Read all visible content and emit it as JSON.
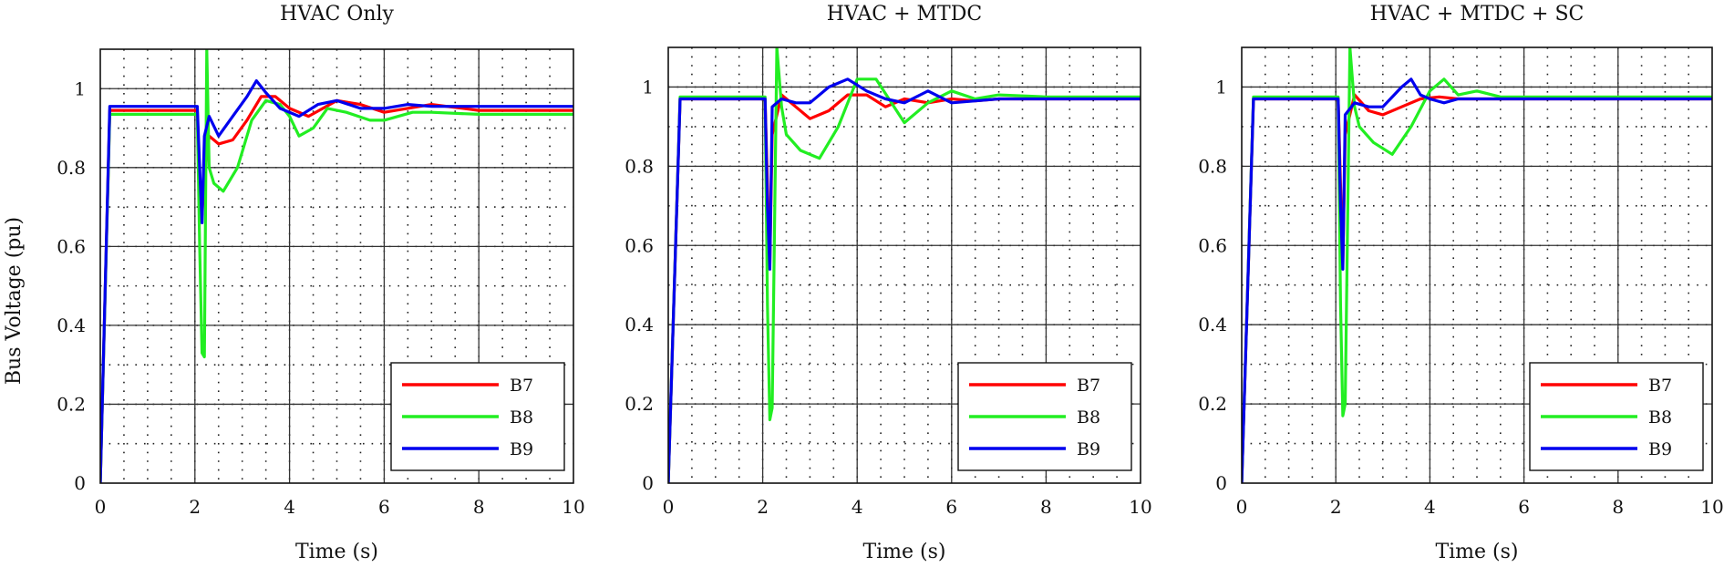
{
  "figure": {
    "ylabel": "Bus Voltage (pu)"
  },
  "colors": {
    "B7": "#ff0000",
    "B8": "#22ee22",
    "B9": "#0000ee"
  },
  "chart_data": [
    {
      "type": "line",
      "title": "HVAC Only",
      "xlabel": "Time (s)",
      "ylabel": "Bus Voltage (pu)",
      "xlim": [
        0,
        10
      ],
      "ylim": [
        0,
        1.1
      ],
      "xticks": [
        "0",
        "2",
        "4",
        "6",
        "8",
        "10"
      ],
      "yticks": [
        "0",
        "0.2",
        "0.4",
        "0.6",
        "0.8",
        "1"
      ],
      "grid": true,
      "legend_position": "bottom-right",
      "series": [
        {
          "name": "B7",
          "x": [
            0,
            0.2,
            2.0,
            2.05,
            2.1,
            2.15,
            2.2,
            2.3,
            2.5,
            2.8,
            3.1,
            3.4,
            3.7,
            4.0,
            4.4,
            5.0,
            5.5,
            6.0,
            7.0,
            8.0,
            9.0,
            10.0
          ],
          "y": [
            0,
            0.945,
            0.945,
            0.945,
            0.75,
            0.68,
            0.78,
            0.88,
            0.86,
            0.87,
            0.92,
            0.98,
            0.98,
            0.95,
            0.93,
            0.97,
            0.96,
            0.94,
            0.96,
            0.945,
            0.945,
            0.945
          ]
        },
        {
          "name": "B8",
          "x": [
            0,
            0.2,
            2.0,
            2.05,
            2.1,
            2.15,
            2.2,
            2.25,
            2.3,
            2.4,
            2.6,
            2.9,
            3.2,
            3.5,
            3.8,
            4.0,
            4.2,
            4.5,
            4.8,
            5.2,
            5.7,
            6.0,
            6.6,
            7.0,
            8.0,
            9.0,
            10.0
          ],
          "y": [
            0,
            0.935,
            0.935,
            0.935,
            0.6,
            0.33,
            0.32,
            1.1,
            0.8,
            0.76,
            0.74,
            0.8,
            0.92,
            0.97,
            0.96,
            0.93,
            0.88,
            0.9,
            0.95,
            0.94,
            0.92,
            0.92,
            0.94,
            0.94,
            0.935,
            0.935,
            0.935
          ]
        },
        {
          "name": "B9",
          "x": [
            0,
            0.2,
            2.0,
            2.05,
            2.1,
            2.15,
            2.2,
            2.3,
            2.5,
            2.8,
            3.1,
            3.3,
            3.5,
            3.8,
            4.2,
            4.6,
            5.0,
            5.5,
            6.0,
            6.5,
            7.0,
            8.0,
            9.0,
            10.0
          ],
          "y": [
            0,
            0.955,
            0.955,
            0.955,
            0.8,
            0.66,
            0.88,
            0.93,
            0.88,
            0.93,
            0.98,
            1.02,
            0.99,
            0.95,
            0.93,
            0.96,
            0.97,
            0.95,
            0.95,
            0.96,
            0.955,
            0.955,
            0.955,
            0.955
          ]
        }
      ]
    },
    {
      "type": "line",
      "title": "HVAC + MTDC",
      "xlabel": "Time (s)",
      "ylabel": "",
      "xlim": [
        0,
        10
      ],
      "ylim": [
        0,
        1.1
      ],
      "xticks": [
        "0",
        "2",
        "4",
        "6",
        "8",
        "10"
      ],
      "yticks": [
        "0",
        "0.2",
        "0.4",
        "0.6",
        "0.8",
        "1"
      ],
      "grid": true,
      "legend_position": "bottom-right",
      "series": [
        {
          "name": "B7",
          "x": [
            0,
            0.25,
            2.0,
            2.05,
            2.1,
            2.15,
            2.2,
            2.4,
            2.7,
            3.0,
            3.4,
            3.8,
            4.2,
            4.6,
            5.0,
            5.5,
            6.0,
            6.5,
            7.0,
            8.0,
            9.0,
            10.0
          ],
          "y": [
            0,
            0.97,
            0.97,
            0.97,
            0.75,
            0.55,
            0.88,
            0.98,
            0.95,
            0.92,
            0.94,
            0.98,
            0.98,
            0.95,
            0.97,
            0.96,
            0.97,
            0.965,
            0.97,
            0.97,
            0.97,
            0.97
          ]
        },
        {
          "name": "B8",
          "x": [
            0,
            0.25,
            2.0,
            2.05,
            2.1,
            2.15,
            2.2,
            2.3,
            2.4,
            2.5,
            2.8,
            3.2,
            3.6,
            4.0,
            4.4,
            5.0,
            5.5,
            6.0,
            6.5,
            7.0,
            8.0,
            9.0,
            10.0
          ],
          "y": [
            0,
            0.975,
            0.975,
            0.975,
            0.45,
            0.16,
            0.19,
            1.1,
            0.95,
            0.88,
            0.84,
            0.82,
            0.9,
            1.02,
            1.02,
            0.91,
            0.96,
            0.99,
            0.97,
            0.98,
            0.975,
            0.975,
            0.975
          ]
        },
        {
          "name": "B9",
          "x": [
            0,
            0.25,
            2.0,
            2.05,
            2.1,
            2.15,
            2.2,
            2.4,
            2.7,
            3.0,
            3.4,
            3.8,
            4.2,
            4.6,
            5.0,
            5.5,
            6.0,
            7.0,
            8.0,
            9.0,
            10.0
          ],
          "y": [
            0,
            0.97,
            0.97,
            0.97,
            0.7,
            0.54,
            0.95,
            0.97,
            0.96,
            0.96,
            1.0,
            1.02,
            0.99,
            0.97,
            0.96,
            0.99,
            0.96,
            0.97,
            0.97,
            0.97,
            0.97
          ]
        }
      ]
    },
    {
      "type": "line",
      "title": "HVAC + MTDC + SC",
      "xlabel": "Time (s)",
      "ylabel": "",
      "xlim": [
        0,
        10
      ],
      "ylim": [
        0,
        1.1
      ],
      "xticks": [
        "0",
        "2",
        "4",
        "6",
        "8",
        "10"
      ],
      "yticks": [
        "0",
        "0.2",
        "0.4",
        "0.6",
        "0.8",
        "1"
      ],
      "grid": true,
      "legend_position": "bottom-right",
      "series": [
        {
          "name": "B7",
          "x": [
            0,
            0.25,
            2.0,
            2.05,
            2.1,
            2.15,
            2.2,
            2.4,
            2.7,
            3.0,
            3.4,
            3.8,
            4.2,
            4.6,
            5.0,
            6.0,
            7.0,
            8.0,
            9.0,
            10.0
          ],
          "y": [
            0,
            0.97,
            0.97,
            0.97,
            0.75,
            0.55,
            0.88,
            0.98,
            0.94,
            0.93,
            0.95,
            0.97,
            0.975,
            0.97,
            0.97,
            0.97,
            0.97,
            0.97,
            0.97,
            0.97
          ]
        },
        {
          "name": "B8",
          "x": [
            0,
            0.25,
            2.0,
            2.05,
            2.1,
            2.15,
            2.2,
            2.3,
            2.4,
            2.5,
            2.8,
            3.2,
            3.6,
            4.0,
            4.3,
            4.6,
            5.0,
            5.5,
            6.0,
            7.0,
            8.0,
            9.0,
            10.0
          ],
          "y": [
            0,
            0.975,
            0.975,
            0.975,
            0.45,
            0.17,
            0.2,
            1.1,
            0.95,
            0.9,
            0.86,
            0.83,
            0.9,
            0.99,
            1.02,
            0.98,
            0.99,
            0.975,
            0.975,
            0.975,
            0.975,
            0.975,
            0.975
          ]
        },
        {
          "name": "B9",
          "x": [
            0,
            0.25,
            2.0,
            2.05,
            2.1,
            2.15,
            2.2,
            2.4,
            2.7,
            3.0,
            3.4,
            3.6,
            3.8,
            4.0,
            4.3,
            4.6,
            5.0,
            6.0,
            7.0,
            8.0,
            9.0,
            10.0
          ],
          "y": [
            0,
            0.97,
            0.97,
            0.97,
            0.7,
            0.54,
            0.93,
            0.96,
            0.95,
            0.95,
            1.0,
            1.02,
            0.98,
            0.97,
            0.96,
            0.97,
            0.97,
            0.97,
            0.97,
            0.97,
            0.97,
            0.97
          ]
        }
      ]
    }
  ]
}
